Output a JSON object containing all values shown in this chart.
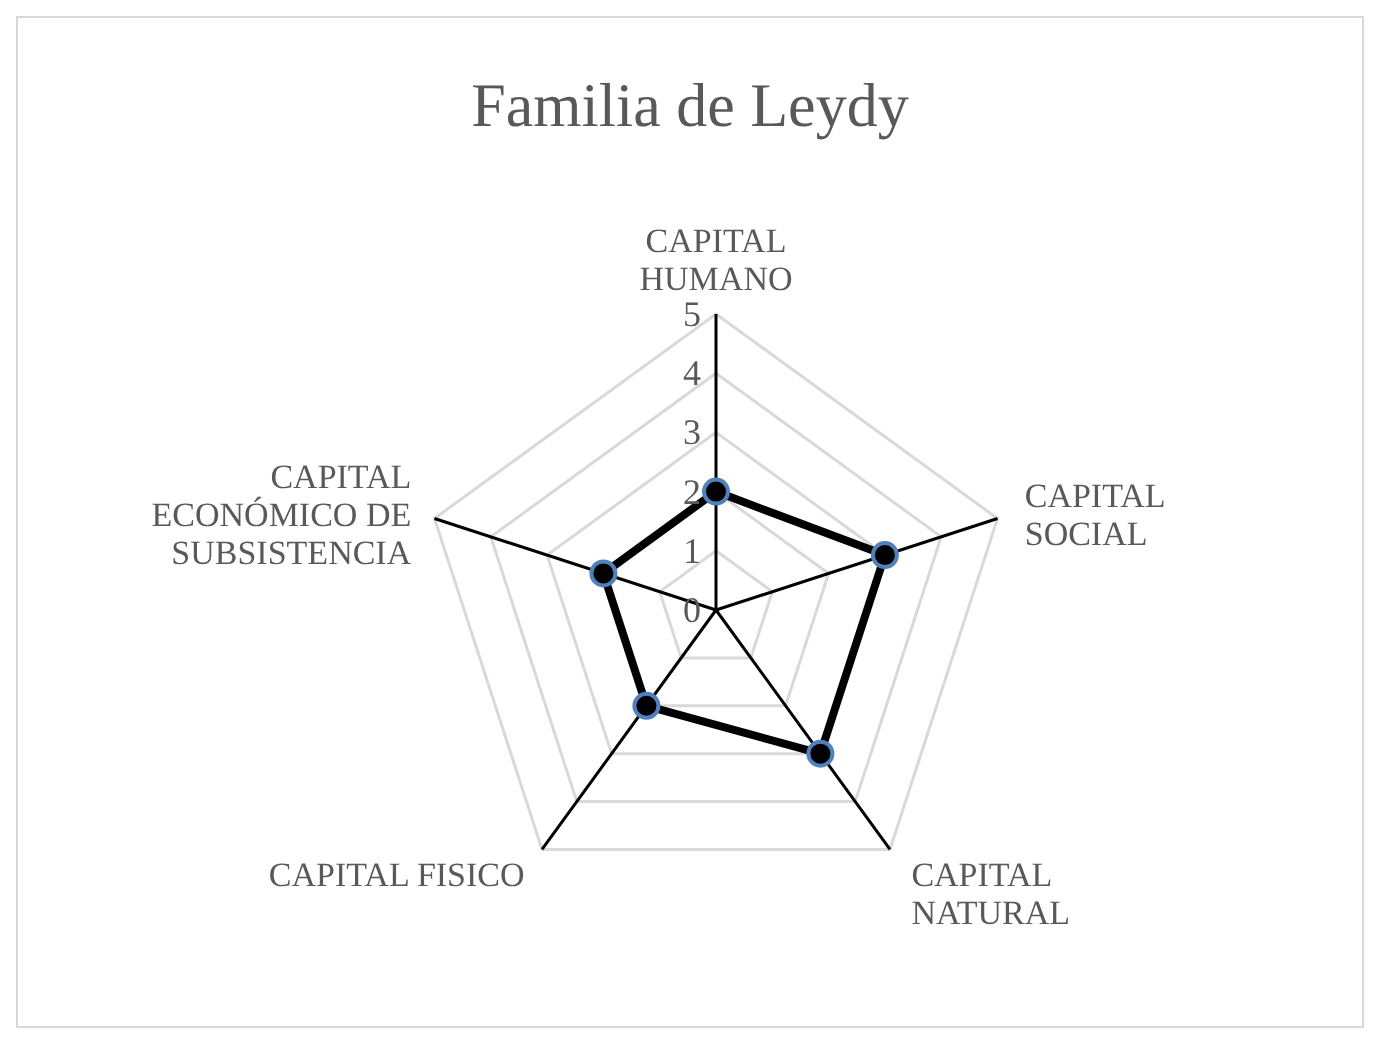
{
  "chart_data": {
    "type": "radar",
    "title": "Familia de Leydy",
    "categories": [
      "CAPITAL HUMANO",
      "CAPITAL SOCIAL",
      "CAPITAL NATURAL",
      "CAPITAL FISICO",
      "CAPITAL ECONÓMICO DE SUBSISTENCIA"
    ],
    "series": [
      {
        "color": "#000000",
        "values": [
          2,
          3,
          3,
          2,
          2
        ]
      }
    ],
    "ylim": [
      0,
      5
    ],
    "yticks": [
      0,
      1,
      2,
      3,
      4,
      5
    ],
    "grid": true,
    "marker": "circle"
  }
}
